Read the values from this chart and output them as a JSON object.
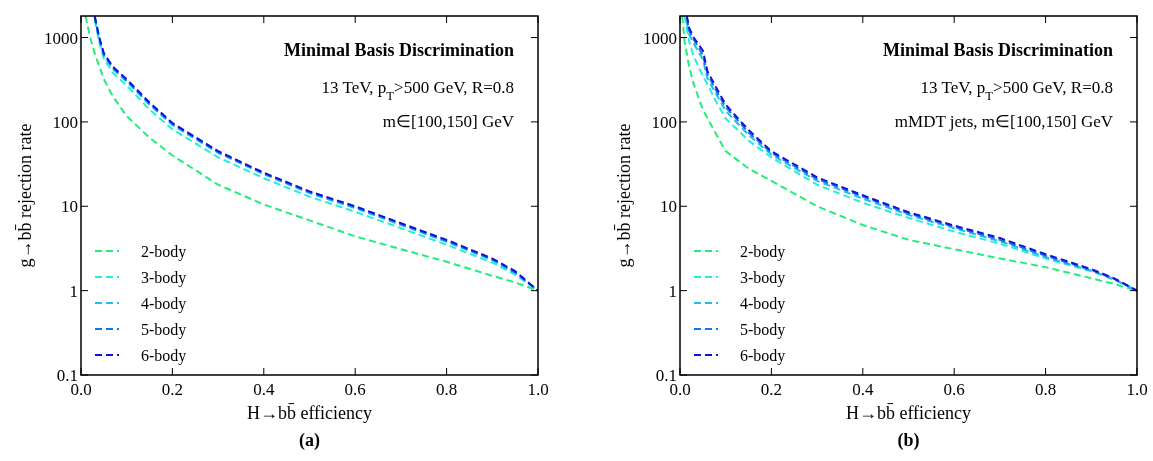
{
  "chart_data": [
    {
      "type": "line",
      "title": "Minimal Basis Discrimination",
      "subtitle": "13 TeV, p$_{T}$>500 GeV, R=0.8",
      "annotations": [
        "m∈[100,150] GeV",
        "(a)"
      ],
      "xlabel": "H→bb̄ efficiency",
      "ylabel": "g→bb̄ rejection rate",
      "log": "y",
      "xlim": [
        0,
        1
      ],
      "ylim": [
        0.1,
        1800
      ],
      "xticks": [
        {
          "value": 0,
          "label": "0.0"
        },
        {
          "value": 0.2,
          "label": "0.2"
        },
        {
          "value": 0.4,
          "label": "0.4"
        },
        {
          "value": 0.6,
          "label": "0.6"
        },
        {
          "value": 0.8,
          "label": "0.8"
        },
        {
          "value": 1,
          "label": "1.0"
        }
      ],
      "yticks": [
        0.1,
        1,
        10,
        100,
        1000
      ],
      "grid": false,
      "legend": "bottom left",
      "line_style": "dashed",
      "marker": "none",
      "series": [
        {
          "name": "2-body",
          "color": "#22ee77",
          "x": [
            0.01,
            0.02,
            0.03,
            0.05,
            0.07,
            0.1,
            0.15,
            0.2,
            0.3,
            0.4,
            0.5,
            0.6,
            0.7,
            0.8,
            0.9,
            0.95,
            1.0
          ],
          "values": [
            1800,
            1000,
            650,
            320,
            200,
            117,
            65,
            40,
            18,
            10.5,
            6.8,
            4.4,
            3.1,
            2.2,
            1.5,
            1.25,
            1.0
          ]
        },
        {
          "name": "3-body",
          "color": "#22eedd",
          "x": [
            0.03,
            0.04,
            0.05,
            0.07,
            0.1,
            0.15,
            0.2,
            0.3,
            0.4,
            0.5,
            0.6,
            0.7,
            0.8,
            0.9,
            0.95,
            1.0
          ],
          "values": [
            1600,
            880,
            560,
            380,
            270,
            140,
            82,
            38,
            21.5,
            13,
            8.6,
            5.5,
            3.5,
            2.15,
            1.55,
            1.0
          ]
        },
        {
          "name": "4-body",
          "color": "#22bbee",
          "x": [
            0.03,
            0.04,
            0.05,
            0.07,
            0.1,
            0.15,
            0.2,
            0.3,
            0.4,
            0.5,
            0.6,
            0.7,
            0.8,
            0.9,
            0.95,
            1.0
          ],
          "values": [
            1700,
            950,
            610,
            420,
            300,
            160,
            92,
            43,
            24,
            14.3,
            9.5,
            6,
            3.8,
            2.3,
            1.62,
            1.0
          ]
        },
        {
          "name": "5-body",
          "color": "#1177ee",
          "x": [
            0.03,
            0.04,
            0.05,
            0.07,
            0.1,
            0.15,
            0.2,
            0.3,
            0.4,
            0.5,
            0.6,
            0.7,
            0.8,
            0.9,
            0.95,
            1.0
          ],
          "values": [
            1750,
            980,
            630,
            440,
            310,
            165,
            95,
            44,
            24.5,
            14.7,
            9.8,
            6.2,
            3.9,
            2.35,
            1.65,
            1.0
          ]
        },
        {
          "name": "6-body",
          "color": "#1111dd",
          "x": [
            0.03,
            0.04,
            0.05,
            0.07,
            0.1,
            0.15,
            0.2,
            0.3,
            0.4,
            0.5,
            0.6,
            0.7,
            0.8,
            0.9,
            0.95,
            1.0
          ],
          "values": [
            1800,
            1000,
            650,
            450,
            320,
            170,
            97,
            45,
            25,
            15,
            10,
            6.3,
            4,
            2.4,
            1.7,
            1.0
          ]
        }
      ]
    },
    {
      "type": "line",
      "title": "Minimal Basis Discrimination",
      "subtitle": "13 TeV, p$_{T}$>500 GeV, R=0.8",
      "annotations": [
        "mMDT jets, m∈[100,150] GeV",
        "(b)"
      ],
      "xlabel": "H→bb̄ efficiency",
      "ylabel": "g→bb̄ rejection rate",
      "log": "y",
      "xlim": [
        0,
        1
      ],
      "ylim": [
        0.1,
        1800
      ],
      "xticks": [
        {
          "value": 0,
          "label": "0.0"
        },
        {
          "value": 0.2,
          "label": "0.2"
        },
        {
          "value": 0.4,
          "label": "0.4"
        },
        {
          "value": 0.6,
          "label": "0.6"
        },
        {
          "value": 0.8,
          "label": "0.8"
        },
        {
          "value": 1,
          "label": "1.0"
        }
      ],
      "yticks": [
        0.1,
        1,
        10,
        100,
        1000
      ],
      "grid": false,
      "legend": "bottom left",
      "line_style": "dashed",
      "marker": "none",
      "series": [
        {
          "name": "2-body",
          "color": "#22ee77",
          "x": [
            0.005,
            0.01,
            0.02,
            0.03,
            0.05,
            0.08,
            0.1,
            0.15,
            0.2,
            0.3,
            0.4,
            0.5,
            0.6,
            0.7,
            0.8,
            0.9,
            0.95,
            1.0
          ],
          "values": [
            1800,
            900,
            450,
            280,
            140,
            70,
            45,
            28,
            20,
            10,
            6,
            4,
            3.1,
            2.4,
            1.9,
            1.4,
            1.2,
            1.0
          ]
        },
        {
          "name": "3-body",
          "color": "#22eedd",
          "x": [
            0.01,
            0.02,
            0.03,
            0.05,
            0.06,
            0.08,
            0.1,
            0.15,
            0.2,
            0.3,
            0.4,
            0.5,
            0.6,
            0.7,
            0.8,
            0.9,
            0.95,
            1.0
          ],
          "values": [
            1800,
            900,
            600,
            350,
            280,
            170,
            110,
            60,
            38,
            18,
            11,
            7.3,
            5,
            3.6,
            2.4,
            1.7,
            1.35,
            1.0
          ]
        },
        {
          "name": "4-body",
          "color": "#22bbee",
          "x": [
            0.015,
            0.02,
            0.03,
            0.05,
            0.06,
            0.08,
            0.1,
            0.15,
            0.2,
            0.3,
            0.4,
            0.5,
            0.6,
            0.7,
            0.8,
            0.9,
            0.95,
            1.0
          ],
          "values": [
            1500,
            1100,
            850,
            550,
            330,
            210,
            135,
            70,
            41,
            20,
            12.3,
            7.9,
            5.5,
            3.85,
            2.5,
            1.72,
            1.36,
            1.0
          ]
        },
        {
          "name": "5-body",
          "color": "#1177ee",
          "x": [
            0.015,
            0.02,
            0.03,
            0.05,
            0.06,
            0.08,
            0.1,
            0.15,
            0.2,
            0.3,
            0.4,
            0.5,
            0.6,
            0.7,
            0.8,
            0.9,
            0.95,
            1.0
          ],
          "values": [
            1700,
            1200,
            950,
            620,
            370,
            230,
            150,
            75,
            43,
            21,
            13,
            8.2,
            5.7,
            4.0,
            2.6,
            1.75,
            1.38,
            1.0
          ]
        },
        {
          "name": "6-body",
          "color": "#1111dd",
          "x": [
            0.015,
            0.02,
            0.03,
            0.05,
            0.06,
            0.08,
            0.1,
            0.15,
            0.2,
            0.3,
            0.4,
            0.5,
            0.6,
            0.7,
            0.8,
            0.9,
            0.95,
            1.0
          ],
          "values": [
            1800,
            1300,
            1000,
            700,
            400,
            250,
            160,
            80,
            45,
            22,
            13.5,
            8.5,
            5.9,
            4.2,
            2.7,
            1.8,
            1.4,
            1.0
          ]
        }
      ]
    }
  ]
}
